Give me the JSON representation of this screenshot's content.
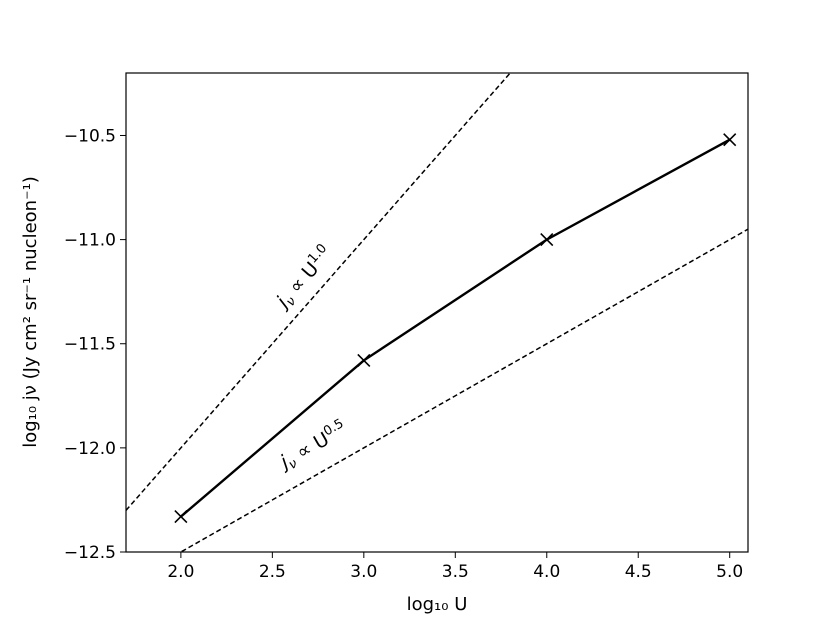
{
  "chart_data": {
    "type": "line",
    "title": "",
    "xlabel": "log₁₀ U",
    "ylabel": "log₁₀ jν (Jy cm² sr⁻¹ nucleon⁻¹)",
    "xlim": [
      1.7,
      5.1
    ],
    "ylim": [
      -12.5,
      -10.2
    ],
    "x_ticks": [
      2.0,
      2.5,
      3.0,
      3.5,
      4.0,
      4.5,
      5.0
    ],
    "x_tick_labels": [
      "2.0",
      "2.5",
      "3.0",
      "3.5",
      "4.0",
      "4.5",
      "5.0"
    ],
    "y_ticks": [
      -12.5,
      -12.0,
      -11.5,
      -11.0,
      -10.5
    ],
    "y_tick_labels": [
      "−12.5",
      "−12.0",
      "−11.5",
      "−11.0",
      "−10.5"
    ],
    "grid": false,
    "series": [
      {
        "x": [
          2.0,
          3.0,
          4.0,
          5.0
        ],
        "y": [
          -12.33,
          -11.58,
          -11.0,
          -10.52
        ],
        "style": "solid",
        "marker": "x",
        "color": "#000000"
      }
    ],
    "reference_lines": [
      {
        "slope": 1.0,
        "intercept": -14.0,
        "style": "dashed",
        "color": "#000000",
        "label": "jν ∝ U^1.0",
        "label_parts": {
          "prefix": "j",
          "sub": "ν",
          "mid": " ∝ U",
          "sup": "1.0"
        }
      },
      {
        "slope": 0.5,
        "intercept": -13.5,
        "style": "dashed",
        "color": "#000000",
        "label": "jν ∝ U^0.5",
        "label_parts": {
          "prefix": "j",
          "sub": "ν",
          "mid": " ∝ U",
          "sup": "0.5"
        }
      }
    ]
  }
}
